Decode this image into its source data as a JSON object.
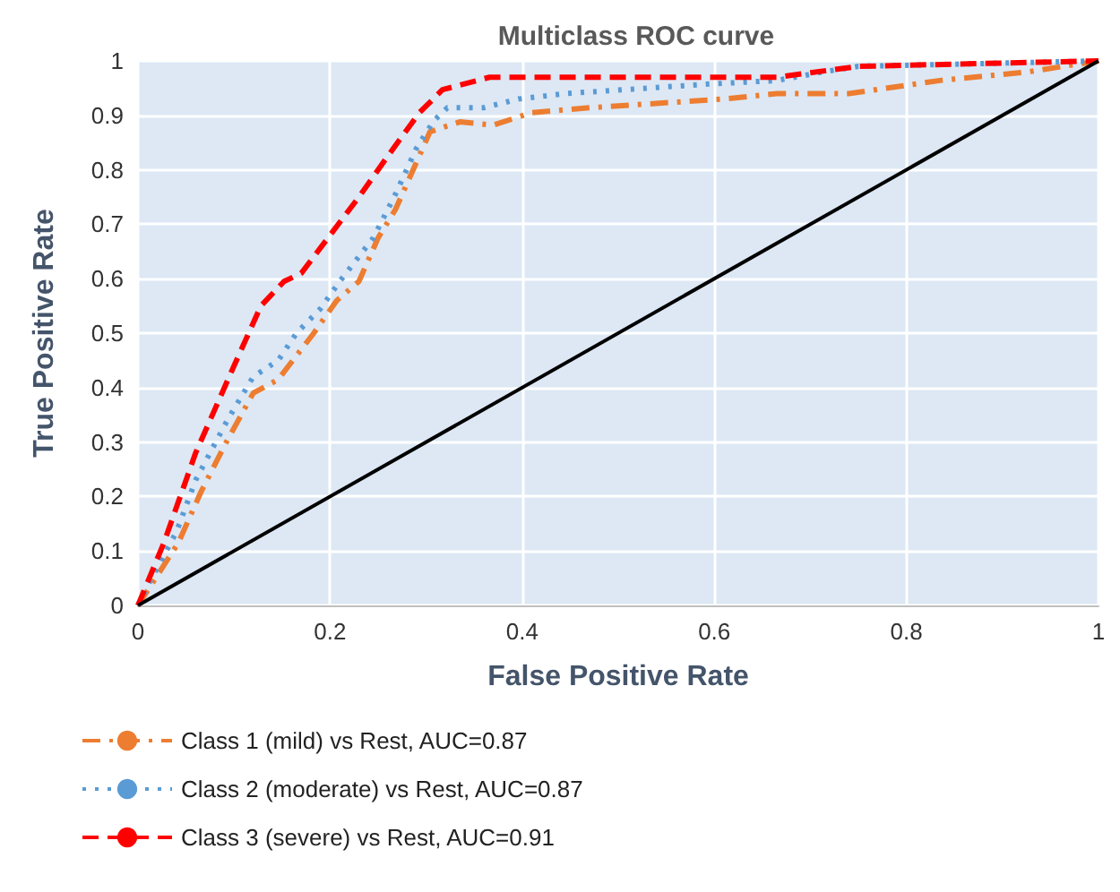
{
  "chart_data": {
    "type": "line",
    "title": "Multiclass ROC curve",
    "xlabel": "False Positive Rate",
    "ylabel": "True Positive Rate",
    "xlim": [
      0,
      1
    ],
    "ylim": [
      0,
      1
    ],
    "xticks": [
      0,
      0.2,
      0.4,
      0.6,
      0.8,
      1
    ],
    "yticks": [
      0,
      0.1,
      0.2,
      0.3,
      0.4,
      0.5,
      0.6,
      0.7,
      0.8,
      0.9,
      1
    ],
    "grid": true,
    "legend": "bottom",
    "marker": "none",
    "series": [
      {
        "name": "Class 1 (mild) vs Rest, AUC=0.87",
        "color": "#ed7d31",
        "line_style": "dashdot",
        "x": [
          0,
          0.042,
          0.066,
          0.092,
          0.12,
          0.146,
          0.183,
          0.207,
          0.23,
          0.25,
          0.268,
          0.293,
          0.304,
          0.335,
          0.37,
          0.41,
          0.47,
          0.61,
          0.665,
          0.74,
          0.835,
          0.927,
          1
        ],
        "values": [
          0,
          0.115,
          0.21,
          0.3,
          0.39,
          0.415,
          0.5,
          0.56,
          0.595,
          0.675,
          0.727,
          0.826,
          0.87,
          0.888,
          0.882,
          0.905,
          0.914,
          0.93,
          0.94,
          0.94,
          0.964,
          0.98,
          1
        ]
      },
      {
        "name": "Class 2 (moderate) vs Rest, AUC=0.87",
        "color": "#5b9bd5",
        "line_style": "dotted",
        "x": [
          0,
          0.01,
          0.04,
          0.06,
          0.093,
          0.12,
          0.146,
          0.165,
          0.19,
          0.21,
          0.245,
          0.268,
          0.29,
          0.308,
          0.322,
          0.36,
          0.396,
          0.445,
          0.59,
          0.665,
          0.714,
          0.75,
          1
        ],
        "values": [
          0,
          0.036,
          0.135,
          0.23,
          0.34,
          0.42,
          0.45,
          0.5,
          0.545,
          0.595,
          0.675,
          0.755,
          0.84,
          0.89,
          0.914,
          0.914,
          0.93,
          0.94,
          0.957,
          0.964,
          0.98,
          0.99,
          1
        ]
      },
      {
        "name": "Class 3 (severe) vs Rest, AUC=0.91",
        "color": "#ff0000",
        "line_style": "dashed",
        "x": [
          0,
          0.027,
          0.06,
          0.1,
          0.128,
          0.152,
          0.17,
          0.2,
          0.23,
          0.26,
          0.293,
          0.317,
          0.366,
          0.665,
          0.75,
          1
        ],
        "values": [
          0,
          0.115,
          0.28,
          0.44,
          0.55,
          0.595,
          0.61,
          0.68,
          0.75,
          0.825,
          0.905,
          0.947,
          0.97,
          0.97,
          0.99,
          1
        ]
      },
      {
        "color": "#000000",
        "line_style": "solid",
        "x": [
          0,
          1
        ],
        "values": [
          0,
          1
        ]
      }
    ]
  }
}
